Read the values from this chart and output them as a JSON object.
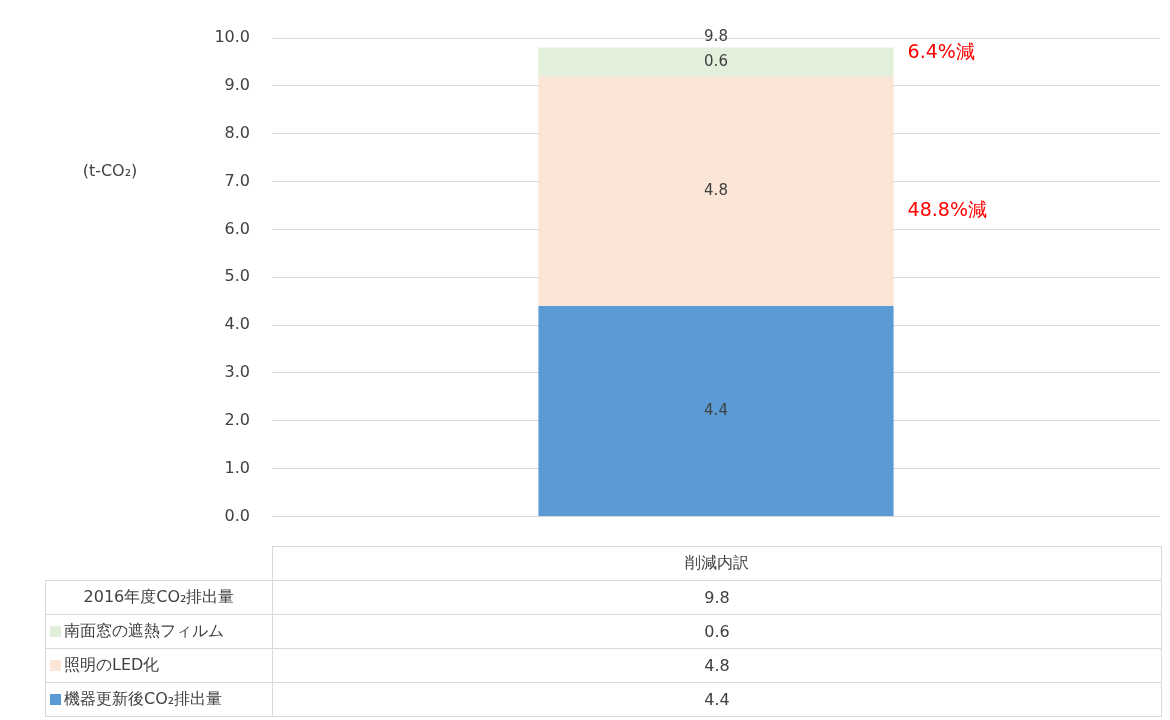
{
  "chart_data": {
    "type": "bar",
    "stacked": true,
    "ylabel": "(t-CO₂)",
    "categories": [
      "削減内訳"
    ],
    "series": [
      {
        "name": "機器更新後CO₂排出量",
        "color": "#5b9bd5",
        "values": [
          4.4
        ],
        "value_labels": [
          "4.4"
        ]
      },
      {
        "name": "照明のLED化",
        "color": "#fbe5d6",
        "values": [
          4.8
        ],
        "value_labels": [
          "4.8"
        ]
      },
      {
        "name": "南面窓の遮熱フィルム",
        "color": "#e2efda",
        "values": [
          0.6
        ],
        "value_labels": [
          "0.6"
        ]
      }
    ],
    "totals": [
      "9.8"
    ],
    "ylim": [
      0,
      10
    ],
    "yticks": [
      {
        "value": 0,
        "label": "0.0"
      },
      {
        "value": 1,
        "label": "1.0"
      },
      {
        "value": 2,
        "label": "2.0"
      },
      {
        "value": 3,
        "label": "3.0"
      },
      {
        "value": 4,
        "label": "4.0"
      },
      {
        "value": 5,
        "label": "5.0"
      },
      {
        "value": 6,
        "label": "6.0"
      },
      {
        "value": 7,
        "label": "7.0"
      },
      {
        "value": 8,
        "label": "8.0"
      },
      {
        "value": 9,
        "label": "9.0"
      },
      {
        "value": 10,
        "label": "10.0"
      }
    ],
    "grid": "y",
    "legend": "bottom",
    "annotations": [
      "2016年度CO₂排出量",
      "6.4%減",
      "48.8%減"
    ]
  }
}
